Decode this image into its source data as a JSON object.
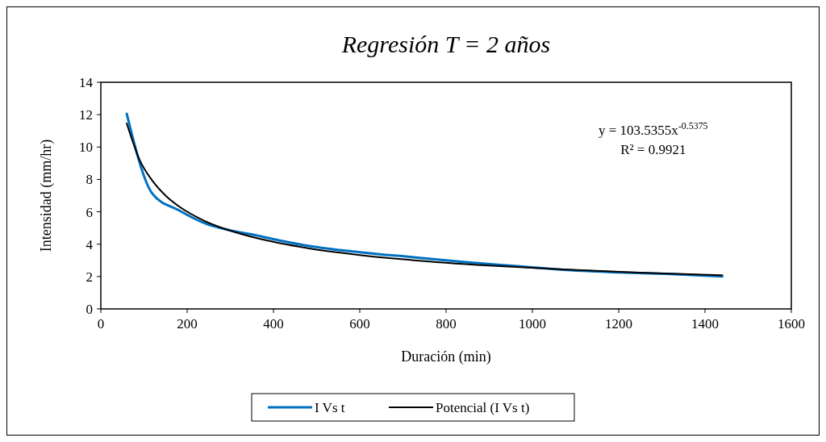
{
  "chart_data": {
    "type": "line",
    "title": "Regresión T = 2 años",
    "xlabel": "Duración (min)",
    "ylabel": "Intensidad (mm/hr)",
    "xlim": [
      0,
      1600
    ],
    "xticks": [
      0,
      200,
      400,
      600,
      800,
      1000,
      1200,
      1400,
      1600
    ],
    "ylim": [
      0,
      14
    ],
    "yticks": [
      0,
      2,
      4,
      6,
      8,
      10,
      12,
      14
    ],
    "series": [
      {
        "name": "I Vs t",
        "color": "#0070c0",
        "x": [
          60,
          120,
          180,
          240,
          300,
          360,
          420,
          480,
          600,
          720,
          840,
          960,
          1080,
          1200,
          1320,
          1440
        ],
        "values": [
          12.05,
          7.1,
          6.1,
          5.3,
          4.85,
          4.55,
          4.2,
          3.9,
          3.5,
          3.2,
          2.9,
          2.65,
          2.4,
          2.25,
          2.15,
          2.0
        ]
      },
      {
        "name": "Potencial (I Vs t)",
        "type": "line",
        "color": "#000000",
        "x": [
          60,
          90,
          120,
          150,
          180,
          240,
          300,
          360,
          480,
          600,
          720,
          900,
          1080,
          1260,
          1440
        ],
        "values": [
          11.46,
          9.2,
          7.9,
          7.0,
          6.35,
          5.44,
          4.83,
          4.38,
          3.75,
          3.33,
          3.02,
          2.68,
          2.43,
          2.23,
          2.08
        ]
      }
    ],
    "annotations": [
      "y = 103.5355x$^{-0.5375}$",
      "R² = 0.9921"
    ],
    "legend": "bottom",
    "grid": false,
    "marker": "none",
    "line_style": "solid"
  }
}
